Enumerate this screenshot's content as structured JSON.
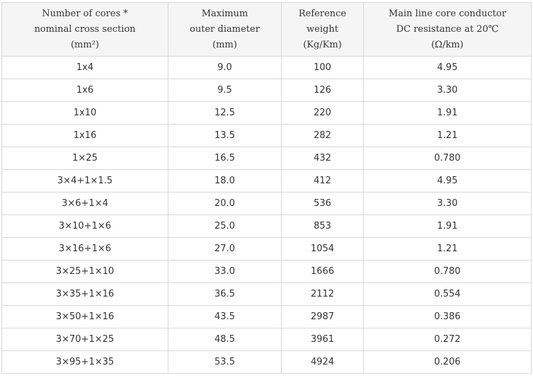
{
  "table": {
    "headers": [
      [
        "Number of cores *",
        "nominal cross section",
        "(mm²)"
      ],
      [
        "Maximum",
        "outer diameter",
        "(mm)"
      ],
      [
        "Reference",
        "weight",
        "(Kg/Km)"
      ],
      [
        "Main line core conductor",
        "DC resistance at 20℃",
        "(Ω/km)"
      ]
    ],
    "rows": [
      [
        "1x4",
        "9.0",
        "100",
        "4.95"
      ],
      [
        "1x6",
        "9.5",
        "126",
        "3.30"
      ],
      [
        "1x10",
        "12.5",
        "220",
        "1.91"
      ],
      [
        "1x16",
        "13.5",
        "282",
        "1.21"
      ],
      [
        "1×25",
        "16.5",
        "432",
        "0.780"
      ],
      [
        "3×4+1×1.5",
        "18.0",
        "412",
        "4.95"
      ],
      [
        "3×6+1×4",
        "20.0",
        "536",
        "3.30"
      ],
      [
        "3×10+1×6",
        "25.0",
        "853",
        "1.91"
      ],
      [
        "3×16+1×6",
        "27.0",
        "1054",
        "1.21"
      ],
      [
        "3×25+1×10",
        "33.0",
        "1666",
        "0.780"
      ],
      [
        "3×35+1×16",
        "36.5",
        "2112",
        "0.554"
      ],
      [
        "3×50+1×16",
        "43.5",
        "2987",
        "0.386"
      ],
      [
        "3×70+1×25",
        "48.5",
        "3961",
        "0.272"
      ],
      [
        "3×95+1×35",
        "53.5",
        "4924",
        "0.206"
      ]
    ]
  }
}
